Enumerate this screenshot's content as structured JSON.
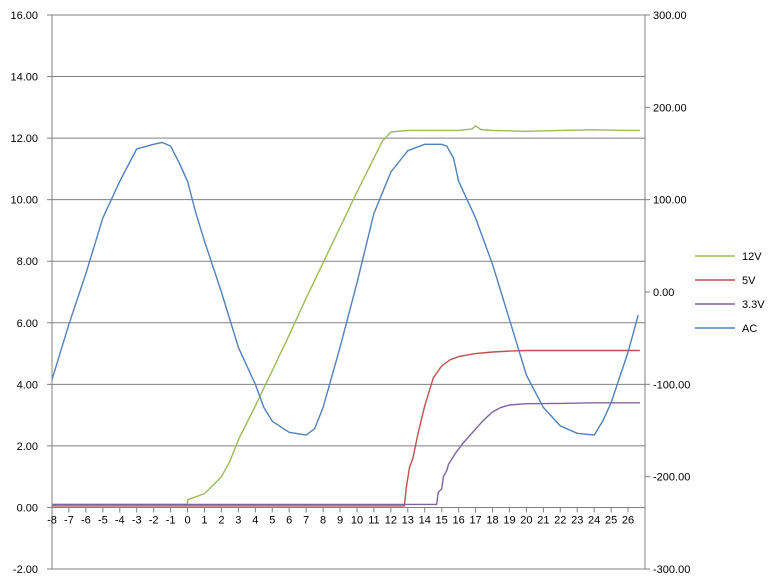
{
  "chart_data": {
    "type": "line",
    "title": "",
    "xlabel": "",
    "ylabel": "",
    "xlim": [
      -8,
      27
    ],
    "ylim": [
      -2,
      16
    ],
    "y2lim": [
      -300,
      300
    ],
    "grid": true,
    "legend_position": "right",
    "x_ticks": [
      "-8",
      "-7",
      "-6",
      "-5",
      "-4",
      "-3",
      "-2",
      "-1",
      "0",
      "1",
      "2",
      "3",
      "4",
      "5",
      "6",
      "7",
      "8",
      "9",
      "10",
      "11",
      "12",
      "13",
      "14",
      "15",
      "16",
      "17",
      "18",
      "19",
      "20",
      "21",
      "22",
      "23",
      "24",
      "25",
      "26"
    ],
    "y_ticks": [
      "-2.00",
      "0.00",
      "2.00",
      "4.00",
      "6.00",
      "8.00",
      "10.00",
      "12.00",
      "14.00",
      "16.00"
    ],
    "y2_ticks": [
      "-300.00",
      "-200.00",
      "-100.00",
      "0.00",
      "100.00",
      "200.00",
      "300.00"
    ],
    "series": [
      {
        "name": "12V",
        "axis": "left",
        "color": "#9bbb59",
        "points": [
          [
            -8,
            0.1
          ],
          [
            0,
            0.1
          ],
          [
            0,
            0.25
          ],
          [
            1,
            0.45
          ],
          [
            2,
            1.0
          ],
          [
            2.5,
            1.5
          ],
          [
            3,
            2.2
          ],
          [
            4,
            3.3
          ],
          [
            5,
            4.45
          ],
          [
            6,
            5.6
          ],
          [
            7,
            6.8
          ],
          [
            8,
            7.95
          ],
          [
            9,
            9.1
          ],
          [
            10,
            10.25
          ],
          [
            11,
            11.35
          ],
          [
            11.5,
            11.9
          ],
          [
            12,
            12.2
          ],
          [
            13,
            12.25
          ],
          [
            16,
            12.25
          ],
          [
            16.8,
            12.3
          ],
          [
            17,
            12.4
          ],
          [
            17.3,
            12.28
          ],
          [
            18,
            12.25
          ],
          [
            20,
            12.22
          ],
          [
            22,
            12.25
          ],
          [
            24,
            12.27
          ],
          [
            26,
            12.25
          ],
          [
            26.7,
            12.25
          ]
        ]
      },
      {
        "name": "5V",
        "axis": "left",
        "color": "#c0504d",
        "points": [
          [
            -8,
            0.05
          ],
          [
            12.8,
            0.05
          ],
          [
            12.9,
            0.6
          ],
          [
            13.1,
            1.3
          ],
          [
            13.3,
            1.6
          ],
          [
            13.6,
            2.4
          ],
          [
            14,
            3.3
          ],
          [
            14.5,
            4.2
          ],
          [
            15,
            4.6
          ],
          [
            15.5,
            4.8
          ],
          [
            16,
            4.9
          ],
          [
            17,
            5.0
          ],
          [
            18,
            5.05
          ],
          [
            19,
            5.08
          ],
          [
            20,
            5.1
          ],
          [
            22,
            5.1
          ],
          [
            24,
            5.1
          ],
          [
            26,
            5.1
          ],
          [
            26.7,
            5.1
          ]
        ]
      },
      {
        "name": "3.3V",
        "axis": "left",
        "color": "#8064a2",
        "points": [
          [
            -8,
            0.1
          ],
          [
            14.7,
            0.1
          ],
          [
            14.8,
            0.5
          ],
          [
            15,
            0.6
          ],
          [
            15.1,
            1.0
          ],
          [
            15.3,
            1.2
          ],
          [
            15.4,
            1.4
          ],
          [
            15.8,
            1.75
          ],
          [
            16.2,
            2.05
          ],
          [
            17,
            2.55
          ],
          [
            17.5,
            2.85
          ],
          [
            18,
            3.1
          ],
          [
            18.5,
            3.25
          ],
          [
            19,
            3.33
          ],
          [
            20,
            3.37
          ],
          [
            22,
            3.38
          ],
          [
            24,
            3.4
          ],
          [
            26,
            3.4
          ],
          [
            26.7,
            3.4
          ]
        ]
      },
      {
        "name": "AC",
        "axis": "right",
        "color": "#4f81bd",
        "points": [
          [
            -8,
            -95
          ],
          [
            -7,
            -35
          ],
          [
            -6,
            20
          ],
          [
            -5,
            80
          ],
          [
            -4,
            120
          ],
          [
            -3,
            155
          ],
          [
            -2,
            160
          ],
          [
            -1.5,
            162
          ],
          [
            -1,
            158
          ],
          [
            -0.5,
            140
          ],
          [
            0,
            120
          ],
          [
            0.5,
            85
          ],
          [
            1,
            55
          ],
          [
            2,
            0
          ],
          [
            3,
            -60
          ],
          [
            4,
            -100
          ],
          [
            4.5,
            -125
          ],
          [
            5,
            -140
          ],
          [
            6,
            -152
          ],
          [
            7,
            -155
          ],
          [
            7.5,
            -148
          ],
          [
            8,
            -125
          ],
          [
            9,
            -60
          ],
          [
            10,
            10
          ],
          [
            11,
            85
          ],
          [
            12,
            130
          ],
          [
            13,
            153
          ],
          [
            14,
            160
          ],
          [
            15,
            160
          ],
          [
            15.3,
            158
          ],
          [
            15.7,
            145
          ],
          [
            16,
            120
          ],
          [
            17,
            80
          ],
          [
            18,
            30
          ],
          [
            19,
            -30
          ],
          [
            20,
            -90
          ],
          [
            21,
            -125
          ],
          [
            22,
            -145
          ],
          [
            23,
            -153
          ],
          [
            24,
            -155
          ],
          [
            24.5,
            -140
          ],
          [
            25,
            -120
          ],
          [
            26,
            -65
          ],
          [
            26.6,
            -25
          ]
        ]
      }
    ]
  }
}
